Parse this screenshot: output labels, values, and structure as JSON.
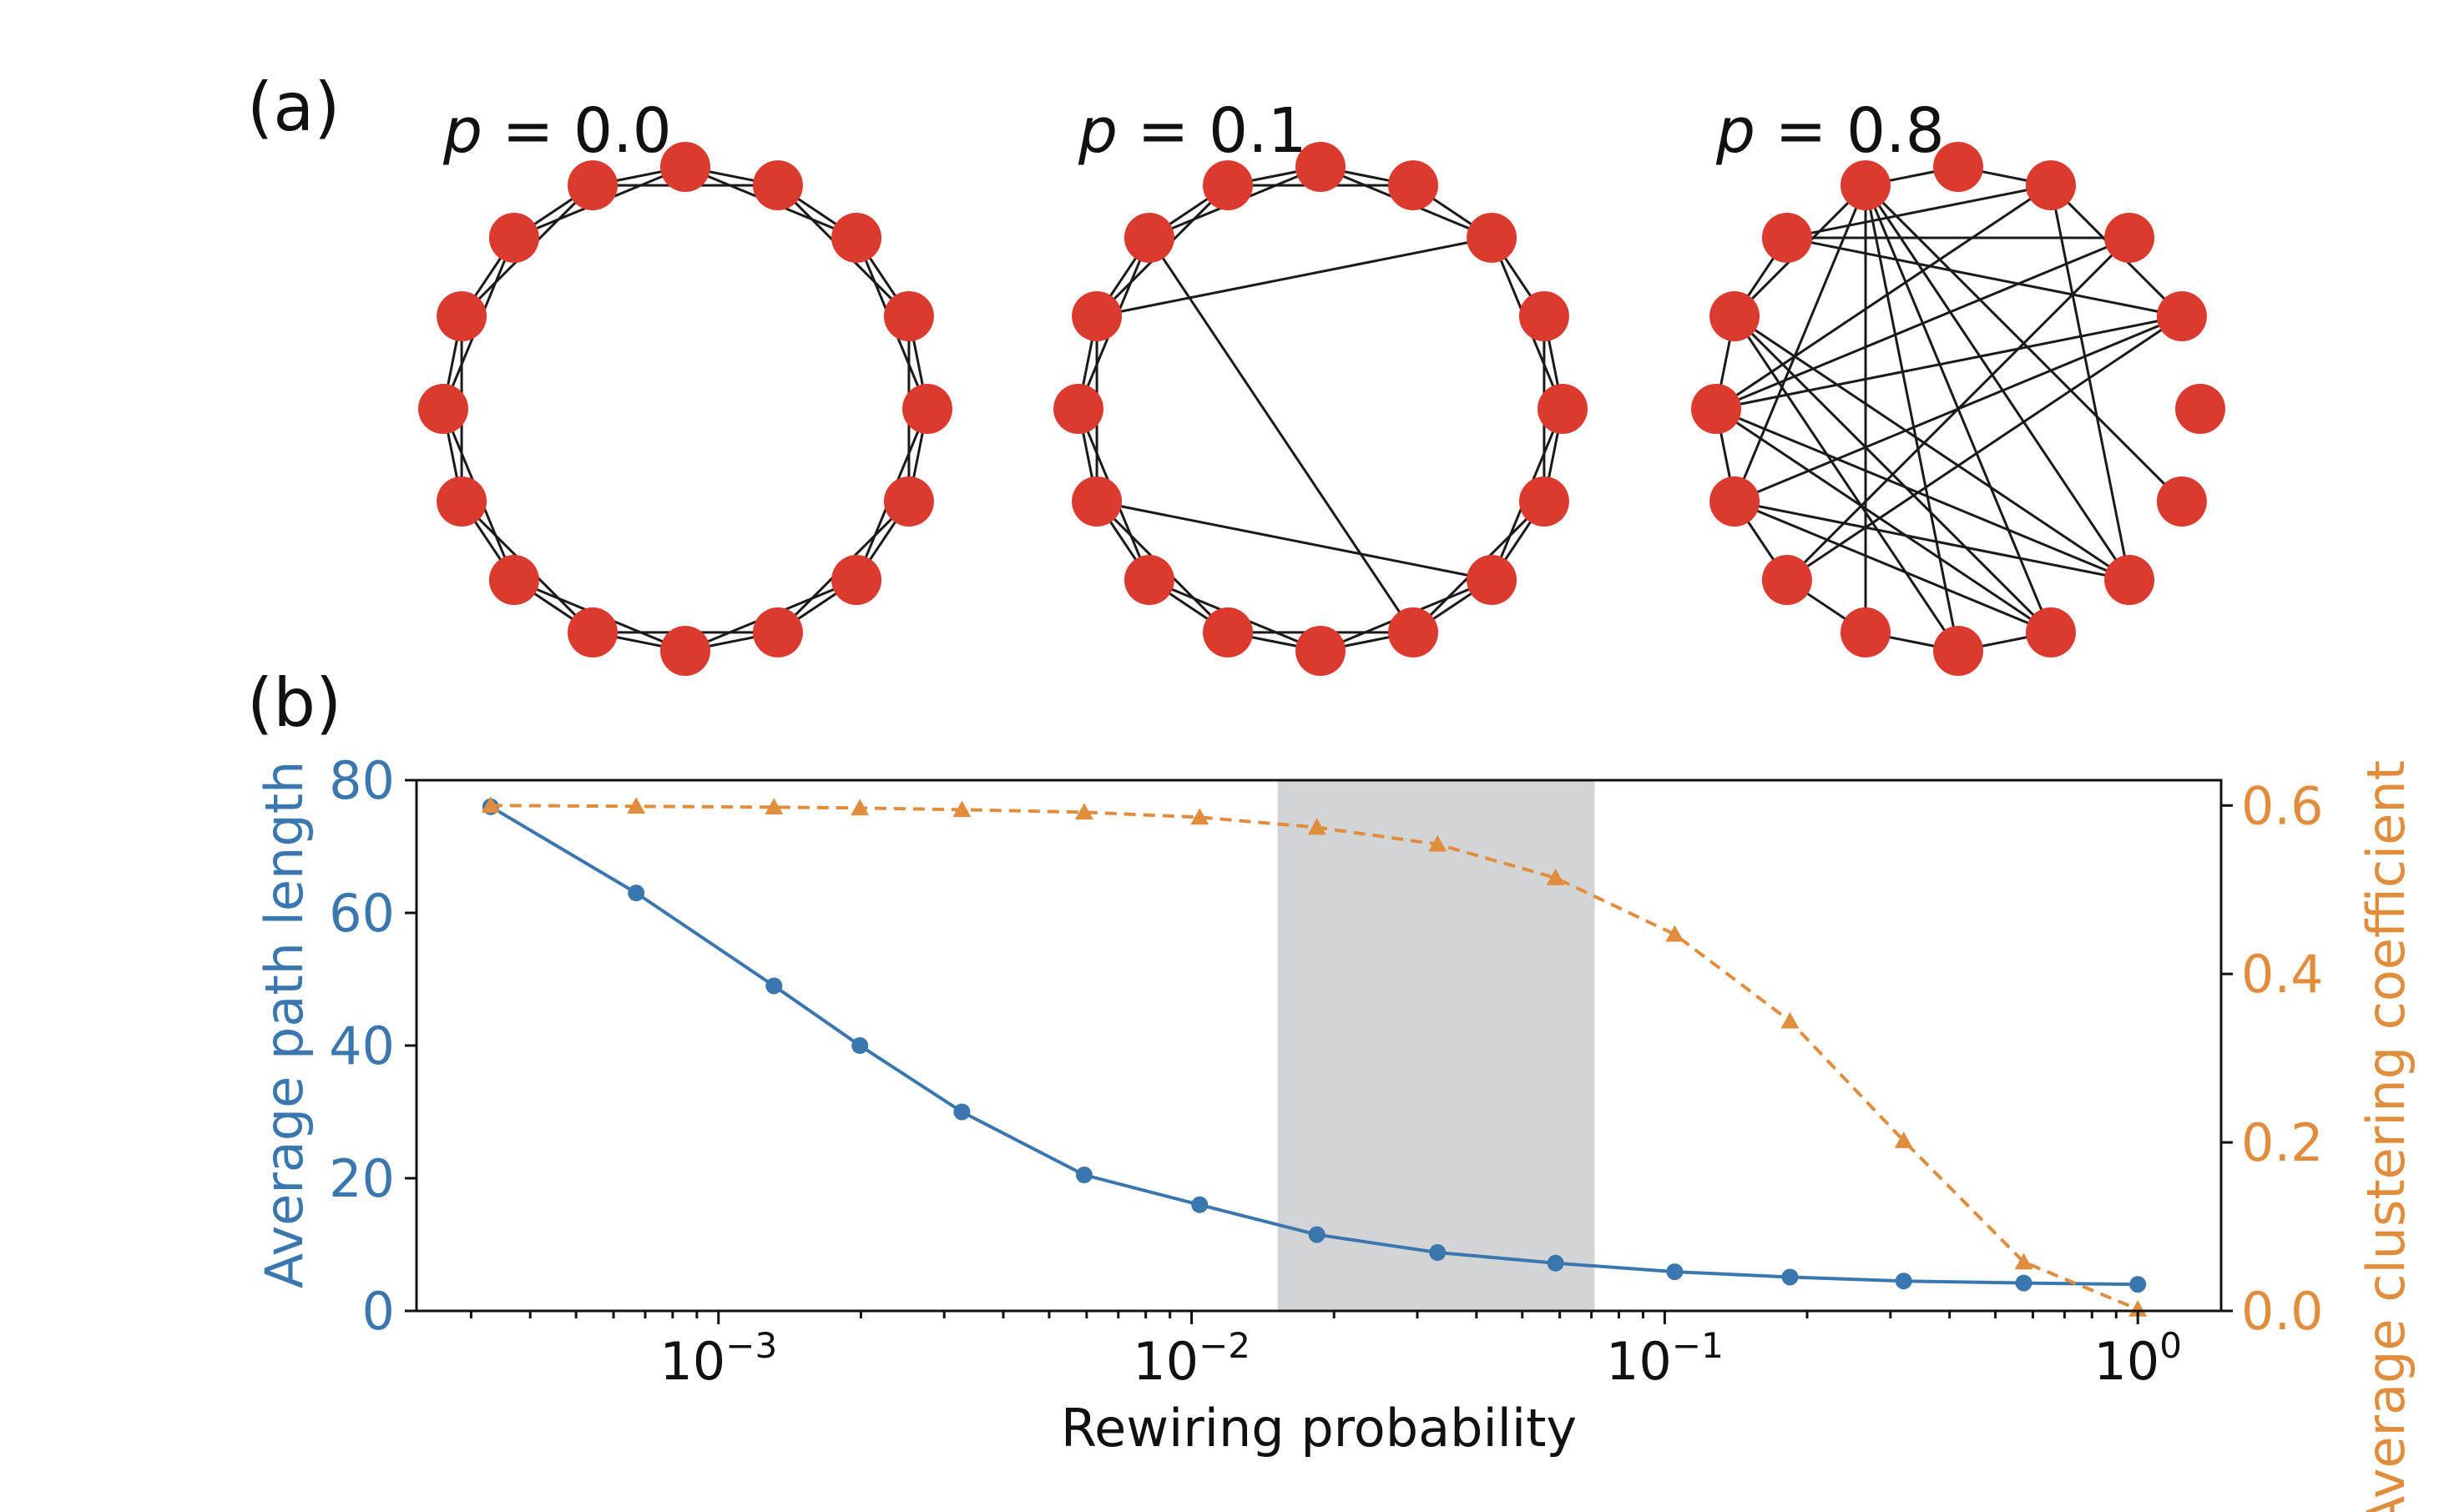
{
  "panels": {
    "a_label": "(a)",
    "b_label": "(b)"
  },
  "networks": [
    {
      "title_var": "p",
      "title_eq": " = ",
      "title_val": "0.0",
      "edges": [
        [
          0,
          1
        ],
        [
          1,
          2
        ],
        [
          2,
          3
        ],
        [
          3,
          4
        ],
        [
          4,
          5
        ],
        [
          5,
          6
        ],
        [
          6,
          7
        ],
        [
          7,
          8
        ],
        [
          8,
          9
        ],
        [
          9,
          10
        ],
        [
          10,
          11
        ],
        [
          11,
          12
        ],
        [
          12,
          13
        ],
        [
          13,
          14
        ],
        [
          14,
          15
        ],
        [
          15,
          0
        ],
        [
          0,
          2
        ],
        [
          1,
          3
        ],
        [
          2,
          4
        ],
        [
          3,
          5
        ],
        [
          4,
          6
        ],
        [
          5,
          7
        ],
        [
          6,
          8
        ],
        [
          7,
          9
        ],
        [
          8,
          10
        ],
        [
          9,
          11
        ],
        [
          10,
          12
        ],
        [
          11,
          13
        ],
        [
          12,
          14
        ],
        [
          13,
          15
        ],
        [
          14,
          0
        ],
        [
          15,
          1
        ]
      ]
    },
    {
      "title_var": "p",
      "title_eq": " = ",
      "title_val": "0.1",
      "edges": [
        [
          0,
          1
        ],
        [
          1,
          2
        ],
        [
          2,
          3
        ],
        [
          3,
          4
        ],
        [
          4,
          5
        ],
        [
          5,
          6
        ],
        [
          6,
          7
        ],
        [
          7,
          8
        ],
        [
          8,
          9
        ],
        [
          9,
          10
        ],
        [
          10,
          11
        ],
        [
          11,
          12
        ],
        [
          12,
          13
        ],
        [
          13,
          14
        ],
        [
          14,
          15
        ],
        [
          15,
          0
        ],
        [
          0,
          2
        ],
        [
          2,
          4
        ],
        [
          3,
          5
        ],
        [
          4,
          6
        ],
        [
          5,
          7
        ],
        [
          6,
          8
        ],
        [
          7,
          9
        ],
        [
          8,
          10
        ],
        [
          9,
          11
        ],
        [
          10,
          12
        ],
        [
          11,
          13
        ],
        [
          12,
          14
        ],
        [
          13,
          15
        ],
        [
          14,
          0
        ],
        [
          15,
          1
        ],
        [
          2,
          13
        ],
        [
          11,
          6
        ],
        [
          14,
          7
        ]
      ]
    },
    {
      "title_var": "p",
      "title_eq": " = ",
      "title_val": "0.8",
      "edges": [
        [
          0,
          1
        ],
        [
          0,
          15
        ],
        [
          1,
          14
        ],
        [
          14,
          13
        ],
        [
          13,
          12
        ],
        [
          12,
          11
        ],
        [
          11,
          10
        ],
        [
          10,
          9
        ],
        [
          9,
          8
        ],
        [
          8,
          7
        ],
        [
          14,
          2
        ],
        [
          1,
          3
        ],
        [
          14,
          3
        ],
        [
          15,
          8
        ],
        [
          15,
          7
        ],
        [
          15,
          6
        ],
        [
          13,
          15
        ],
        [
          13,
          8
        ],
        [
          13,
          7
        ],
        [
          13,
          6
        ],
        [
          12,
          1
        ],
        [
          12,
          3
        ],
        [
          12,
          2
        ],
        [
          12,
          6
        ],
        [
          12,
          7
        ],
        [
          11,
          3
        ],
        [
          11,
          7
        ],
        [
          11,
          6
        ],
        [
          10,
          2
        ],
        [
          10,
          3
        ],
        [
          9,
          15
        ],
        [
          1,
          6
        ],
        [
          15,
          5
        ],
        [
          15,
          11
        ]
      ]
    }
  ],
  "chart_data": {
    "type": "line",
    "xlabel": "Rewiring probability",
    "ylabel_left": "Average path length",
    "ylabel_right": "Average clustering coefficient",
    "x_scale": "log",
    "xlim": [
      0.00023,
      1.5
    ],
    "ylim_left": [
      0,
      80
    ],
    "ylim_right": [
      0,
      0.63
    ],
    "x_ticks": [
      {
        "base": "10",
        "exp": "−3",
        "value": 0.001
      },
      {
        "base": "10",
        "exp": "−2",
        "value": 0.01
      },
      {
        "base": "10",
        "exp": "−1",
        "value": 0.1
      },
      {
        "base": "10",
        "exp": "0",
        "value": 1
      }
    ],
    "y_left_ticks": [
      "0",
      "20",
      "40",
      "60",
      "80"
    ],
    "y_right_ticks": [
      "0.0",
      "0.2",
      "0.4",
      "0.6"
    ],
    "shaded_region": [
      0.0152,
      0.0711
    ],
    "x": [
      0.00033,
      0.00067,
      0.00131,
      0.00199,
      0.00327,
      0.00593,
      0.0104,
      0.0184,
      0.0331,
      0.0588,
      0.105,
      0.184,
      0.32,
      0.574,
      1.0
    ],
    "series": [
      {
        "axis": "left",
        "color": "#3a77ae",
        "marker": "circle",
        "line": "solid",
        "values": [
          76,
          63,
          49,
          40,
          30,
          20.5,
          16,
          11.5,
          8.8,
          7.2,
          5.9,
          5.1,
          4.5,
          4.2,
          4.0
        ]
      },
      {
        "axis": "right",
        "color": "#e08e3d",
        "marker": "triangle",
        "line": "dashed",
        "values": [
          0.6,
          0.599,
          0.598,
          0.597,
          0.595,
          0.592,
          0.586,
          0.574,
          0.554,
          0.514,
          0.447,
          0.344,
          0.202,
          0.058,
          0.002
        ]
      }
    ],
    "colors": {
      "left_axis": "#3a77ae",
      "right_axis": "#e08e3d",
      "shade": "#d3d4d6",
      "node": "#db3a2f"
    }
  }
}
